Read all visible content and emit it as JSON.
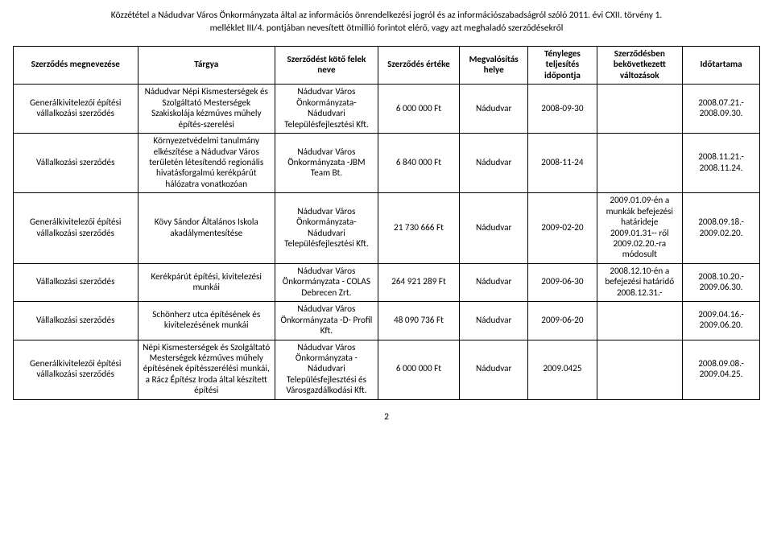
{
  "header": {
    "line1": "Közzététel a Nádudvar Város Önkormányzata által az információs önrendelkezési jogról és az információszabadságról szóló 2011. évi CXII. törvény 1.",
    "line2": "melléklet III/4. pontjában nevesített ötmillió forintot elérő, vagy azt meghaladó szerződésekről"
  },
  "columns": [
    "Szerződés megnevezése",
    "Tárgya",
    "Szerződést kötő felek neve",
    "Szerződés értéke",
    "Megvalósítás helye",
    "Tényleges teljesítés időpontja",
    "Szerződésben bekövetkezett változások",
    "Időtartama"
  ],
  "rows": [
    {
      "name": "Generálkivitelezői építési vállalkozási szerződés",
      "subject": "Nádudvar Népi Kismesterségek és Szolgáltató Mesterségek Szakiskolája kézműves műhely építés-szerelési",
      "parties": "Nádudvar Város Önkormányzata- Nádudvari Településfejlesztési Kft.",
      "value": "6 000 000 Ft",
      "location": "Nádudvar",
      "date": "2008-09-30",
      "changes": "",
      "duration": "2008.07.21.- 2008.09.30."
    },
    {
      "name": "Vállalkozási szerződés",
      "subject": "Környezetvédelmi tanulmány elkészítése a Nádudvar Város területén létesítendő regionális hivatásforgalmú kerékpárút hálózatra vonatkozóan",
      "parties": "Nádudvar Város Önkormányzata -JBM Team Bt.",
      "value": "6 840 000 Ft",
      "location": "Nádudvar",
      "date": "2008-11-24",
      "changes": "",
      "duration": "2008.11.21.- 2008.11.24."
    },
    {
      "name": "Generálkivitelezői építési vállalkozási szerződés",
      "subject": "Kövy Sándor Általános Iskola akadálymentesítése",
      "parties": "Nádudvar Város Önkormányzata- Nádudvari Településfejlesztési Kft.",
      "value": "21 730 666 Ft",
      "location": "Nádudvar",
      "date": "2009-02-20",
      "changes": "2009.01.09-én a munkák befejezési határideje 2009.01.31-- ről 2009.02.20.-ra módosult",
      "duration": "2008.09.18.- 2009.02.20."
    },
    {
      "name": "Vállalkozási szerződés",
      "subject": "Kerékpárút építési, kivitelezési munkái",
      "parties": "Nádudvar Város Önkormányzata - COLAS Debrecen Zrt.",
      "value": "264 921 289 Ft",
      "location": "Nádudvar",
      "date": "2009-06-30",
      "changes": "2008.12.10-én a befejezési határidő 2008.12.31.-",
      "duration": "2008.10.20.- 2009.06.30."
    },
    {
      "name": "Vállalkozási szerződés",
      "subject": "Schönherz utca építésének és kivitelezésének munkái",
      "parties": "Nádudvar Város Önkormányzata -D- Profil Kft.",
      "value": "48 090 736 Ft",
      "location": "Nádudvar",
      "date": "2009-06-20",
      "changes": "",
      "duration": "2009.04.16.- 2009.06.20."
    },
    {
      "name": "Generálkivitelezői építési vállalkozási szerződés",
      "subject": "Népi Kismesterségek és Szolgáltató Mesterségek kézműves műhely építésének építésszerélési munkái, a Rácz Építész Iroda által készített építési",
      "parties": "Nádudvar Város Önkormányzata - Nádudvari Településfejlesztési és Városgazdálkodási Kft.",
      "value": "6 000 000 Ft",
      "location": "Nádudvar",
      "date": "2009.0425",
      "changes": "",
      "duration": "2008.09.08.- 2009.04.25."
    }
  ],
  "page_number": "2"
}
